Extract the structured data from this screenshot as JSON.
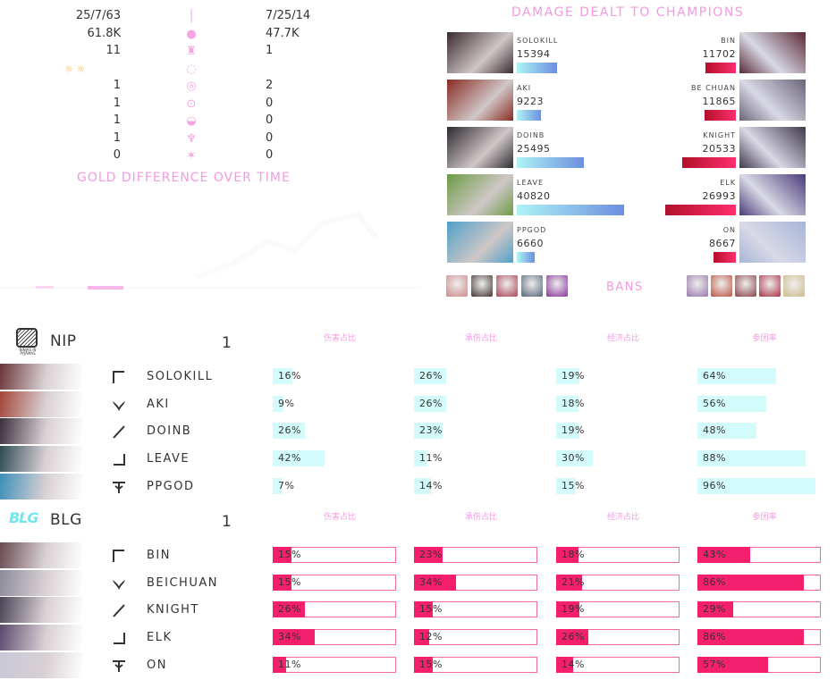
{
  "comparison": {
    "rows": [
      {
        "left": "25/7/63",
        "icon": "sword-icon",
        "right": "7/25/14"
      },
      {
        "left": "61.8K",
        "icon": "gold-coins-icon",
        "right": "47.7K"
      },
      {
        "left": "11",
        "icon": "tower-icon",
        "right": "1"
      },
      {
        "left": "",
        "icon": "inhibitor-icon",
        "right": ""
      },
      {
        "left": "1",
        "icon": "baron-icon",
        "right": "2"
      },
      {
        "left": "1",
        "icon": "rift-herald-icon",
        "right": "0"
      },
      {
        "left": "1",
        "icon": "dragon-icon",
        "right": "0"
      },
      {
        "left": "1",
        "icon": "elder-dragon-icon",
        "right": "0"
      },
      {
        "left": "0",
        "icon": "first-blood-icon",
        "right": "0"
      }
    ],
    "gold_chart_title": "GOLD DIFFERENCE OVER TIME"
  },
  "damage": {
    "title": "DAMAGE DEALT TO CHAMPIONS",
    "max": 40820,
    "rows": [
      {
        "left_name": "SOLOKILL",
        "left_val": 15394,
        "right_name": "BIN",
        "right_val": 11702
      },
      {
        "left_name": "AKI",
        "left_val": 9223,
        "right_name": "BE CHUAN",
        "right_val": 11865
      },
      {
        "left_name": "DOINB",
        "left_val": 25495,
        "right_name": "KNIGHT",
        "right_val": 20533
      },
      {
        "left_name": "LEAVE",
        "left_val": 40820,
        "right_name": "ELK",
        "right_val": 26993
      },
      {
        "left_name": "PPGOD",
        "left_val": 6660,
        "right_name": "ON",
        "right_val": 8667
      }
    ],
    "bans_label": "BANS"
  },
  "columns": [
    "伤害占比",
    "承伤占比",
    "经济占比",
    "参团率"
  ],
  "teams": [
    {
      "name": "NIP",
      "logo_text": "NINJAS IN PYJAMAS",
      "score": "1",
      "color": "#d4fbfb",
      "players": [
        {
          "role": "top-lane-icon",
          "name": "SOLOKILL",
          "stats": [
            16,
            26,
            19,
            64
          ]
        },
        {
          "role": "jungle-icon",
          "name": "AKI",
          "stats": [
            9,
            26,
            18,
            56
          ]
        },
        {
          "role": "mid-lane-icon",
          "name": "DOINB",
          "stats": [
            26,
            23,
            19,
            48
          ]
        },
        {
          "role": "bot-lane-icon",
          "name": "LEAVE",
          "stats": [
            42,
            11,
            30,
            88
          ]
        },
        {
          "role": "support-icon",
          "name": "PPGOD",
          "stats": [
            7,
            14,
            15,
            96
          ]
        }
      ]
    },
    {
      "name": "BLG",
      "logo_text": "BLG",
      "score": "1",
      "color": "#f4206d",
      "players": [
        {
          "role": "top-lane-icon",
          "name": "BIN",
          "stats": [
            15,
            23,
            18,
            43
          ]
        },
        {
          "role": "jungle-icon",
          "name": "BEICHUAN",
          "stats": [
            15,
            34,
            21,
            86
          ]
        },
        {
          "role": "mid-lane-icon",
          "name": "KNIGHT",
          "stats": [
            26,
            15,
            19,
            29
          ]
        },
        {
          "role": "bot-lane-icon",
          "name": "ELK",
          "stats": [
            34,
            12,
            26,
            86
          ]
        },
        {
          "role": "support-icon",
          "name": "ON",
          "stats": [
            11,
            15,
            14,
            57
          ]
        }
      ]
    }
  ]
}
